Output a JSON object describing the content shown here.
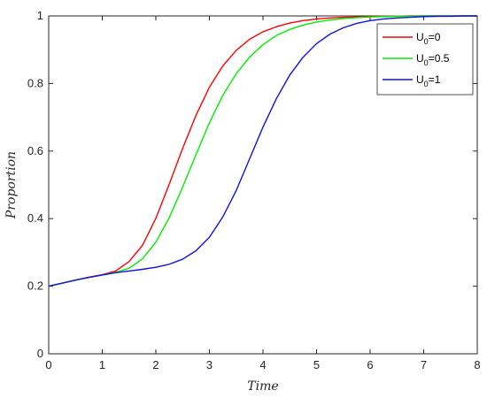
{
  "chart_data": {
    "type": "line",
    "xlabel": "Time",
    "ylabel": "Proportion",
    "xlim": [
      0,
      8
    ],
    "ylim": [
      0,
      1
    ],
    "x_ticks": [
      0,
      1,
      2,
      3,
      4,
      5,
      6,
      7,
      8
    ],
    "y_ticks": [
      0,
      0.2,
      0.4,
      0.6,
      0.8,
      1
    ],
    "y_tick_labels": [
      "0",
      "0.2",
      "0.4",
      "0.6",
      "0.8",
      "1"
    ],
    "grid": false,
    "legend_position": "top-right",
    "x": [
      0,
      0.25,
      0.5,
      0.75,
      1,
      1.25,
      1.5,
      1.75,
      2,
      2.25,
      2.5,
      2.75,
      3,
      3.25,
      3.5,
      3.75,
      4,
      4.25,
      4.5,
      4.75,
      5,
      5.25,
      5.5,
      5.75,
      6,
      6.25,
      6.5,
      6.75,
      7,
      7.25,
      7.5,
      7.75,
      8
    ],
    "series": [
      {
        "legend_main": "U",
        "legend_sub": "0",
        "legend_suffix": "=0",
        "color": "#ff0000",
        "values": [
          0.2,
          0.209,
          0.218,
          0.227,
          0.234,
          0.245,
          0.273,
          0.321,
          0.401,
          0.502,
          0.608,
          0.706,
          0.789,
          0.852,
          0.898,
          0.931,
          0.953,
          0.968,
          0.979,
          0.986,
          0.991,
          0.994,
          0.996,
          0.997,
          0.998,
          0.999,
          0.999,
          1,
          1,
          1,
          1,
          1,
          1
        ]
      },
      {
        "legend_main": "U",
        "legend_sub": "0",
        "legend_suffix": "=0.5",
        "color": "#00ee00",
        "values": [
          0.2,
          0.209,
          0.218,
          0.226,
          0.233,
          0.241,
          0.253,
          0.281,
          0.33,
          0.403,
          0.493,
          0.59,
          0.684,
          0.765,
          0.829,
          0.878,
          0.915,
          0.942,
          0.96,
          0.973,
          0.982,
          0.988,
          0.992,
          0.995,
          0.997,
          0.998,
          0.999,
          0.999,
          1,
          1,
          1,
          1,
          1
        ]
      },
      {
        "legend_main": "U",
        "legend_sub": "0",
        "legend_suffix": "=1",
        "color": "#1010ee",
        "values": [
          0.2,
          0.209,
          0.218,
          0.226,
          0.233,
          0.24,
          0.245,
          0.25,
          0.256,
          0.265,
          0.28,
          0.305,
          0.345,
          0.405,
          0.483,
          0.577,
          0.671,
          0.755,
          0.825,
          0.878,
          0.918,
          0.946,
          0.965,
          0.978,
          0.986,
          0.991,
          0.994,
          0.996,
          0.998,
          0.999,
          0.999,
          1,
          1
        ]
      }
    ]
  }
}
